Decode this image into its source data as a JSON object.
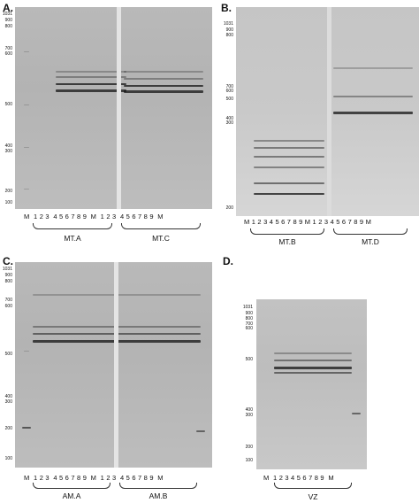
{
  "panels": [
    {
      "letter": "A.",
      "markers": [
        "1031",
        "900",
        "800",
        "700",
        "600",
        "500",
        "400",
        "300",
        "200",
        "100"
      ],
      "lanes": [
        "M",
        "1",
        "2",
        "3",
        "4",
        "5",
        "6",
        "7",
        "8",
        "9",
        "M",
        "1",
        "2",
        "3",
        "4",
        "5",
        "6",
        "7",
        "8",
        "9",
        "M"
      ],
      "groups": [
        "MT.A",
        "MT.C"
      ]
    },
    {
      "letter": "B.",
      "markers": [
        "1031",
        "900",
        "800",
        "700",
        "600",
        "500",
        "400",
        "300",
        "200"
      ],
      "lanes": [
        "M",
        "1",
        "2",
        "3",
        "4",
        "5",
        "6",
        "7",
        "8",
        "9",
        "M",
        "1",
        "2",
        "3",
        "4",
        "5",
        "6",
        "7",
        "8",
        "9",
        "M"
      ],
      "groups": [
        "MT.B",
        "MT.D"
      ]
    },
    {
      "letter": "C.",
      "markers": [
        "1031",
        "900",
        "800",
        "700",
        "600",
        "500",
        "400",
        "300",
        "200",
        "100"
      ],
      "lanes": [
        "M",
        "1",
        "2",
        "3",
        "4",
        "5",
        "6",
        "7",
        "8",
        "9",
        "M",
        "1",
        "2",
        "3",
        "4",
        "5",
        "6",
        "7",
        "8",
        "9",
        "M"
      ],
      "groups": [
        "AM.A",
        "AM.B"
      ]
    },
    {
      "letter": "D.",
      "markers": [
        "1031",
        "900",
        "800",
        "700",
        "600",
        "500",
        "400",
        "300",
        "200",
        "100"
      ],
      "lanes": [
        "M",
        "1",
        "2",
        "3",
        "4",
        "5",
        "6",
        "7",
        "8",
        "9",
        "M"
      ],
      "groups": [
        "VZ"
      ]
    }
  ]
}
